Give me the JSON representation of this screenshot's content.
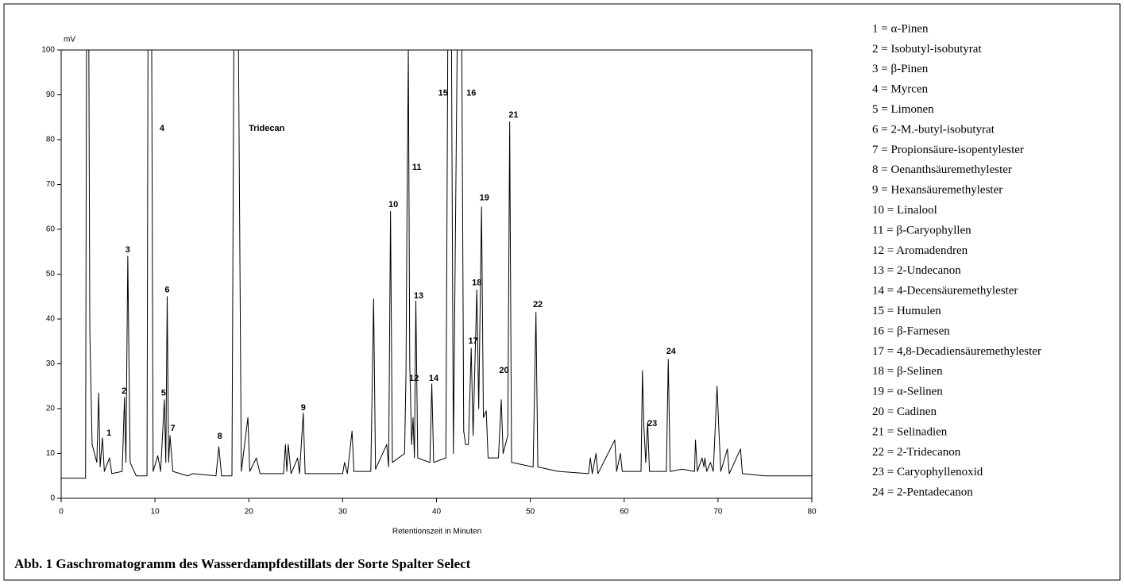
{
  "chart_data": {
    "type": "line",
    "caption": "Abb. 1 Gaschromatogramm des Wasserdampfdestillats der Sorte Spalter Select",
    "y_label": "mV",
    "x_label": "Retentionszeit in Minuten",
    "xlim": [
      0,
      80
    ],
    "xticks": [
      0,
      10,
      20,
      30,
      40,
      50,
      60,
      70,
      80
    ],
    "ylim": [
      0,
      100
    ],
    "yticks": [
      0,
      10,
      20,
      30,
      40,
      50,
      60,
      70,
      80,
      90,
      100
    ],
    "x": [
      0,
      2.6,
      2.7,
      2.95,
      3.05,
      3.3,
      3.8,
      4.0,
      4.15,
      4.4,
      4.6,
      5.15,
      5.4,
      6.5,
      6.75,
      6.9,
      7.1,
      7.35,
      8.0,
      9.15,
      9.25,
      9.65,
      9.8,
      10.3,
      10.6,
      11.0,
      11.15,
      11.3,
      11.45,
      11.6,
      11.9,
      13.5,
      14,
      16.5,
      16.8,
      17.1,
      18.2,
      18.4,
      18.9,
      19.2,
      19.9,
      20.1,
      20.8,
      21.2,
      23.7,
      23.9,
      24.05,
      24.2,
      24.5,
      25.2,
      25.4,
      25.8,
      26.0,
      30.0,
      30.2,
      30.5,
      31.0,
      31.2,
      33.0,
      33.3,
      33.5,
      34.7,
      34.9,
      35.1,
      35.3,
      36.6,
      36.75,
      36.85,
      37.0,
      37.15,
      37.35,
      37.5,
      37.65,
      37.8,
      38.0,
      39.3,
      39.5,
      39.7,
      41.0,
      41.2,
      41.6,
      41.8,
      42.2,
      42.7,
      42.9,
      43.1,
      43.4,
      43.7,
      43.9,
      44.3,
      44.5,
      44.8,
      45.0,
      45.3,
      45.5,
      46.6,
      46.9,
      47.1,
      47.6,
      47.8,
      48.0,
      50.3,
      50.6,
      50.8,
      53,
      56.2,
      56.4,
      56.6,
      57.0,
      57.2,
      59.0,
      59.2,
      59.6,
      59.8,
      61.8,
      61.95,
      62.1,
      62.3,
      62.5,
      62.7,
      64.5,
      64.7,
      64.9,
      66.2,
      67.5,
      67.6,
      67.8,
      68.3,
      68.5,
      68.6,
      68.8,
      69.2,
      69.5,
      69.9,
      70.1,
      70.3,
      71.0,
      71.2,
      72.4,
      72.6,
      75,
      80
    ],
    "series": [
      {
        "color": "#000000",
        "values": [
          4.5,
          4.5,
          100,
          100,
          38,
          12,
          8,
          23.5,
          7,
          13.5,
          6,
          9,
          5.5,
          6,
          22.5,
          8,
          54,
          8,
          5,
          5,
          100,
          100,
          6,
          9.5,
          6,
          22,
          8,
          45,
          8,
          14,
          6,
          5,
          5.5,
          5,
          11.5,
          5,
          5,
          100,
          100,
          6,
          18,
          6,
          9,
          5.5,
          5.5,
          12,
          6,
          12,
          5.5,
          9,
          5.5,
          19,
          5.5,
          5.5,
          8,
          5.5,
          15,
          6,
          6,
          44.5,
          6.5,
          12,
          7,
          64,
          8,
          10,
          28,
          62,
          100,
          30,
          12,
          18,
          9,
          44,
          9,
          8,
          25.5,
          8,
          9,
          100,
          100,
          10,
          100,
          100,
          15,
          12,
          12,
          33.5,
          14,
          46.5,
          20,
          65,
          18,
          19.5,
          9,
          9,
          22,
          10,
          14,
          84,
          8,
          7,
          41.5,
          7,
          6,
          5.5,
          9,
          5.5,
          10,
          5.5,
          13,
          6,
          10,
          6,
          6,
          28.5,
          16,
          8,
          17,
          6,
          6,
          31,
          6,
          6.5,
          6,
          13,
          6,
          9,
          7,
          9,
          6,
          8,
          6,
          25,
          15,
          6,
          11,
          5.5,
          11,
          5.5,
          5,
          5
        ]
      }
    ],
    "annotations": [
      {
        "text": "1",
        "x": 5.1,
        "y": 14.5
      },
      {
        "text": "2",
        "x": 6.7,
        "y": 23.9
      },
      {
        "text": "3",
        "x": 7.1,
        "y": 55.4
      },
      {
        "text": "4",
        "x": 10.75,
        "y": 82.5
      },
      {
        "text": "5",
        "x": 10.9,
        "y": 23.4
      },
      {
        "text": "6",
        "x": 11.3,
        "y": 46.4
      },
      {
        "text": "7",
        "x": 11.9,
        "y": 15.6
      },
      {
        "text": "8",
        "x": 16.9,
        "y": 13.8
      },
      {
        "text": "9",
        "x": 25.8,
        "y": 20.2
      },
      {
        "text": "Tridecan",
        "x": 21.9,
        "y": 82.5
      },
      {
        "text": "10",
        "x": 35.4,
        "y": 65.5
      },
      {
        "text": "11",
        "x": 37.9,
        "y": 73.8
      },
      {
        "text": "12",
        "x": 37.6,
        "y": 26.7
      },
      {
        "text": "13",
        "x": 38.1,
        "y": 45.1
      },
      {
        "text": "14",
        "x": 39.7,
        "y": 26.7
      },
      {
        "text": "15",
        "x": 40.7,
        "y": 90.3
      },
      {
        "text": "16",
        "x": 43.7,
        "y": 90.3
      },
      {
        "text": "17",
        "x": 43.9,
        "y": 35
      },
      {
        "text": "18",
        "x": 44.3,
        "y": 48
      },
      {
        "text": "19",
        "x": 45.1,
        "y": 67
      },
      {
        "text": "20",
        "x": 47.2,
        "y": 28.5
      },
      {
        "text": "21",
        "x": 48.2,
        "y": 85.5
      },
      {
        "text": "22",
        "x": 50.8,
        "y": 43.2
      },
      {
        "text": "23",
        "x": 63.0,
        "y": 16.6
      },
      {
        "text": "24",
        "x": 65.0,
        "y": 32.7
      }
    ],
    "key": [
      "1 = α-Pinen",
      "2 = Isobutyl-isobutyrat",
      "3 = β-Pinen",
      "4 = Myrcen",
      "5 = Limonen",
      "6 = 2-M.-butyl-isobutyrat",
      "7 = Propionsäure-isopentylester",
      "8 = Oenanthsäuremethylester",
      "9 = Hexansäuremethylester",
      "10 = Linalool",
      "11 = β-Caryophyllen",
      "12 = Aromadendren",
      "13 = 2-Undecanon",
      "14 = 4-Decensäuremethylester",
      "15 = Humulen",
      "16 = β-Farnesen",
      "17 = 4,8-Decadiensäuremethylester",
      "18 = β-Selinen",
      "19 = α-Selinen",
      "20 = Cadinen",
      "21 = Selinadien",
      "22 = 2-Tridecanon",
      "23 = Caryophyllenoxid",
      "24 = 2-Pentadecanon"
    ]
  }
}
